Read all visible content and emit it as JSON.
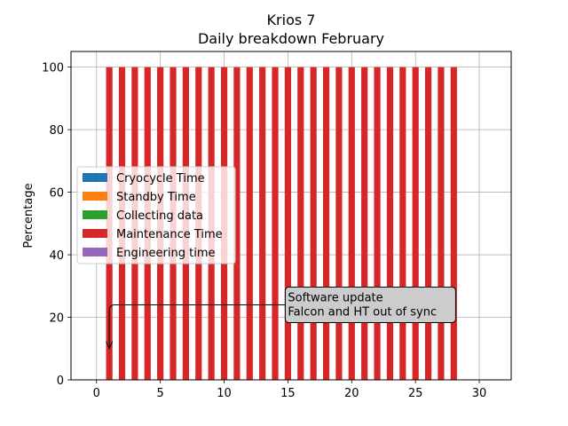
{
  "chart_data": {
    "type": "bar",
    "stacked": true,
    "title": "Krios 7",
    "subtitle": "Daily breakdown February",
    "xlabel": "",
    "ylabel": "Percentage",
    "xlim": [
      -2,
      32.5
    ],
    "ylim": [
      0,
      105
    ],
    "xticks": [
      0,
      5,
      10,
      15,
      20,
      25,
      30
    ],
    "yticks": [
      0,
      20,
      40,
      60,
      80,
      100
    ],
    "grid": true,
    "legend_position": "center-left",
    "x": [
      1,
      2,
      3,
      4,
      5,
      6,
      7,
      8,
      9,
      10,
      11,
      12,
      13,
      14,
      15,
      16,
      17,
      18,
      19,
      20,
      21,
      22,
      23,
      24,
      25,
      26,
      27,
      28
    ],
    "series": [
      {
        "name": "Cryocycle Time",
        "color": "#1f77b4",
        "values": [
          0,
          0,
          0,
          0,
          0,
          0,
          0,
          0,
          0,
          0,
          0,
          0,
          0,
          0,
          0,
          0,
          0,
          0,
          0,
          0,
          0,
          0,
          0,
          0,
          0,
          0,
          0,
          0
        ]
      },
      {
        "name": "Standby Time",
        "color": "#ff7f0e",
        "values": [
          0,
          0,
          0,
          0,
          0,
          0,
          0,
          0,
          0,
          0,
          0,
          0,
          0,
          0,
          0,
          0,
          0,
          0,
          0,
          0,
          0,
          0,
          0,
          0,
          0,
          0,
          0,
          0
        ]
      },
      {
        "name": "Collecting data",
        "color": "#2ca02c",
        "values": [
          0,
          0,
          0,
          0,
          0,
          0,
          0,
          0,
          0,
          0,
          0,
          0,
          0,
          0,
          0,
          0,
          0,
          0,
          0,
          0,
          0,
          0,
          0,
          0,
          0,
          0,
          0,
          0
        ]
      },
      {
        "name": "Maintenance Time",
        "color": "#d62728",
        "values": [
          100,
          100,
          100,
          100,
          100,
          100,
          100,
          100,
          100,
          100,
          100,
          100,
          100,
          100,
          100,
          100,
          100,
          100,
          100,
          100,
          100,
          100,
          100,
          100,
          100,
          100,
          100,
          100
        ]
      },
      {
        "name": "Engineering time",
        "color": "#9467bd",
        "values": [
          0,
          0,
          0,
          0,
          0,
          0,
          0,
          0,
          0,
          0,
          0,
          0,
          0,
          0,
          0,
          0,
          0,
          0,
          0,
          0,
          0,
          0,
          0,
          0,
          0,
          0,
          0,
          0
        ]
      }
    ],
    "annotations": [
      {
        "text_lines": [
          "Software update",
          " Falcon and HT out of sync"
        ],
        "point": [
          1,
          10
        ],
        "text_at": [
          15,
          20
        ]
      }
    ]
  }
}
